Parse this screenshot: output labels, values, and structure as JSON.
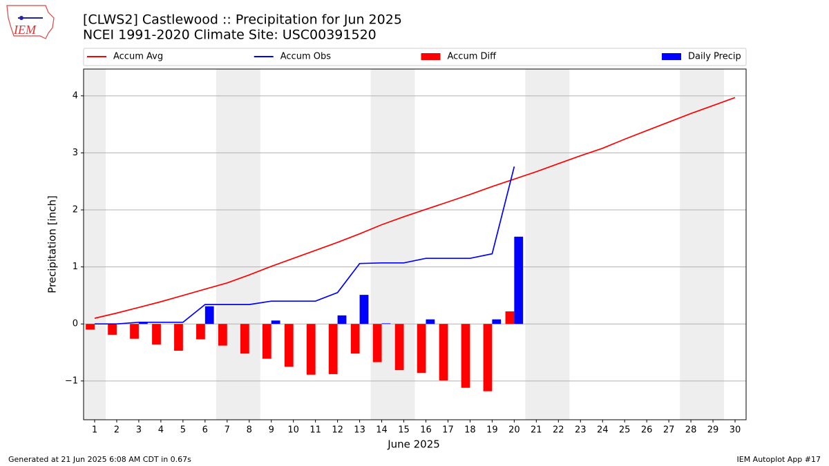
{
  "logo": "IEM",
  "footer_left": "Generated at 21 Jun 2025 6:08 AM CDT in 0.67s",
  "footer_right": "IEM Autoplot App #17",
  "chart_data": {
    "type": "combo",
    "title": "[CLWS2] Castlewood :: Precipitation for Jun 2025",
    "subtitle": "NCEI 1991-2020 Climate Site: USC00391520",
    "x_label": "June 2025",
    "y_label": "Precipitation [inch]",
    "x": [
      1,
      2,
      3,
      4,
      5,
      6,
      7,
      8,
      9,
      10,
      11,
      12,
      13,
      14,
      15,
      16,
      17,
      18,
      19,
      20,
      21,
      22,
      23,
      24,
      25,
      26,
      27,
      28,
      29,
      30
    ],
    "xlim": [
      0.5,
      30.5
    ],
    "xticks": [
      1,
      2,
      3,
      4,
      5,
      6,
      7,
      8,
      9,
      10,
      11,
      12,
      13,
      14,
      15,
      16,
      17,
      18,
      19,
      20,
      21,
      22,
      23,
      24,
      25,
      26,
      27,
      28,
      29,
      30
    ],
    "ylim": [
      -1.68,
      4.47
    ],
    "yticks": [
      {
        "value": -1,
        "label": "−1"
      },
      0,
      1,
      2,
      3,
      4
    ],
    "grid": true,
    "weekend_shading": [
      [
        0.5,
        1.5
      ],
      [
        6.5,
        8.5
      ],
      [
        13.5,
        15.5
      ],
      [
        20.5,
        22.5
      ],
      [
        27.5,
        29.5
      ]
    ],
    "shading_color": "#eeeeee",
    "legend": "top",
    "series": [
      {
        "name": "Accum Avg",
        "type": "line",
        "color": "red",
        "values": [
          0.1,
          0.19,
          0.29,
          0.39,
          0.5,
          0.61,
          0.72,
          0.86,
          1.01,
          1.15,
          1.29,
          1.43,
          1.58,
          1.74,
          1.88,
          2.01,
          2.14,
          2.27,
          2.41,
          2.54,
          2.67,
          2.81,
          2.95,
          3.08,
          3.24,
          3.39,
          3.54,
          3.69,
          3.83,
          3.97
        ]
      },
      {
        "name": "Accum Obs",
        "type": "line",
        "color": "blue",
        "values": [
          0,
          0,
          0.03,
          0.03,
          0.03,
          0.34,
          0.34,
          0.34,
          0.4,
          0.4,
          0.4,
          0.55,
          1.06,
          1.07,
          1.07,
          1.15,
          1.15,
          1.15,
          1.23,
          2.76,
          null,
          null,
          null,
          null,
          null,
          null,
          null,
          null,
          null,
          null
        ]
      },
      {
        "name": "Accum Diff",
        "type": "bar",
        "color": "red",
        "values": [
          -0.1,
          -0.19,
          -0.26,
          -0.36,
          -0.47,
          -0.27,
          -0.38,
          -0.52,
          -0.61,
          -0.75,
          -0.89,
          -0.88,
          -0.52,
          -0.67,
          -0.81,
          -0.86,
          -0.99,
          -1.12,
          -1.18,
          0.22,
          null,
          null,
          null,
          null,
          null,
          null,
          null,
          null,
          null,
          null
        ]
      },
      {
        "name": "Daily Precip",
        "type": "bar",
        "color": "blue",
        "values": [
          0,
          0,
          0.03,
          0,
          0,
          0.31,
          0,
          0,
          0.06,
          0,
          0,
          0.15,
          0.51,
          0.01,
          0,
          0.08,
          0,
          0,
          0.08,
          1.53,
          null,
          null,
          null,
          null,
          null,
          null,
          null,
          null,
          null,
          null
        ]
      }
    ]
  }
}
